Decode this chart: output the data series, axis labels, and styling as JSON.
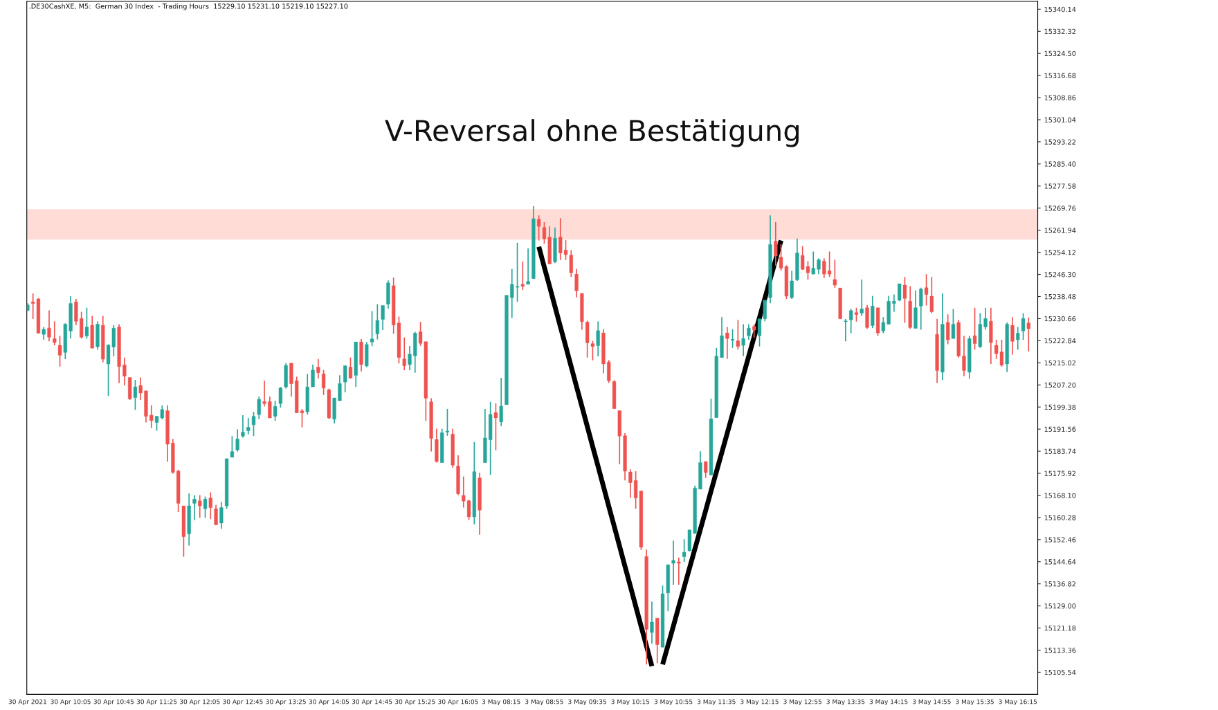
{
  "chart_data": {
    "type": "candlestick",
    "title": "V-Reversal ohne Bestätigung",
    "subtitle": ".DE30CashXE, M5:  German 30 Index  - Trading Hours  15229.10 15231.10 15219.10 15227.10",
    "categories": [
      "30 Apr 2021",
      null,
      null,
      null,
      null,
      null,
      null,
      null,
      "30 Apr 10:05",
      null,
      null,
      null,
      null,
      null,
      null,
      null,
      "30 Apr 10:45",
      null,
      null,
      null,
      null,
      null,
      null,
      null,
      "30 Apr 11:25",
      null,
      null,
      null,
      null,
      null,
      null,
      null,
      "30 Apr 12:05",
      null,
      null,
      null,
      null,
      null,
      null,
      null,
      "30 Apr 12:45",
      null,
      null,
      null,
      null,
      null,
      null,
      null,
      "30 Apr 13:25",
      null,
      null,
      null,
      null,
      null,
      null,
      null,
      "30 Apr 14:05",
      null,
      null,
      null,
      null,
      null,
      null,
      null,
      "30 Apr 14:45",
      null,
      null,
      null,
      null,
      null,
      null,
      null,
      "30 Apr 15:25",
      null,
      null,
      null,
      null,
      null,
      null,
      null,
      "30 Apr 16:05",
      null,
      null,
      null,
      null,
      null,
      null,
      null,
      "3 May 08:15",
      null,
      null,
      null,
      null,
      null,
      null,
      null,
      "3 May 08:55",
      null,
      null,
      null,
      null,
      null,
      null,
      null,
      "3 May 09:35",
      null,
      null,
      null,
      null,
      null,
      null,
      null,
      "3 May 10:15",
      null,
      null,
      null,
      null,
      null,
      null,
      null,
      "3 May 10:55",
      null,
      null,
      null,
      null,
      null,
      null,
      null,
      "3 May 11:35",
      null,
      null,
      null,
      null,
      null,
      null,
      null,
      "3 May 12:15",
      null,
      null,
      null,
      null,
      null,
      null,
      null,
      "3 May 12:55",
      null,
      null,
      null,
      null,
      null,
      null,
      null,
      "3 May 13:35",
      null,
      null,
      null,
      null,
      null,
      null,
      null,
      "3 May 14:15",
      null,
      null,
      null,
      null,
      null,
      null,
      null,
      "3 May 14:55",
      null,
      null,
      null,
      null,
      null,
      null,
      null,
      "3 May 15:35",
      null,
      null,
      null,
      null,
      null,
      null,
      null,
      "3 May 16:15",
      null,
      null
    ],
    "ohlc": [
      [
        15233.6,
        15236.1,
        15233.3,
        15235.5
      ],
      [
        15236.6,
        15239.6,
        15230.5,
        15236.0
      ],
      [
        15237.6,
        15237.9,
        15225.4,
        15225.5
      ],
      [
        15225.1,
        15227.7,
        15223.2,
        15226.9
      ],
      [
        15227.3,
        15233.6,
        15222.6,
        15224.1
      ],
      [
        15223.6,
        15229.7,
        15221.2,
        15222.2
      ],
      [
        15221.2,
        15224.6,
        15213.7,
        15217.7
      ],
      [
        15218.7,
        15229.0,
        15216.3,
        15228.7
      ],
      [
        15226.3,
        15238.6,
        15223.6,
        15236.0
      ],
      [
        15236.6,
        15237.6,
        15228.3,
        15229.7
      ],
      [
        15230.7,
        15233.1,
        15223.6,
        15224.1
      ],
      [
        15224.5,
        15234.5,
        15223.6,
        15227.7
      ],
      [
        15228.3,
        15231.6,
        15220.2,
        15220.2
      ],
      [
        15220.7,
        15229.7,
        15219.7,
        15228.7
      ],
      [
        15228.3,
        15231.6,
        15215.2,
        15216.3
      ],
      [
        15214.6,
        15221.6,
        15203.3,
        15221.3
      ],
      [
        15220.6,
        15228.3,
        15217.3,
        15227.3
      ],
      [
        15227.7,
        15228.7,
        15207.9,
        15213.7
      ],
      [
        15214.3,
        15216.9,
        15207.0,
        15210.3
      ],
      [
        15209.8,
        15209.8,
        15201.9,
        15202.3
      ],
      [
        15202.7,
        15209.0,
        15198.4,
        15206.5
      ],
      [
        15207.0,
        15209.8,
        15201.9,
        15204.3
      ],
      [
        15205.1,
        15205.1,
        15193.9,
        15196.1
      ],
      [
        15196.5,
        15200.0,
        15192.0,
        15194.6
      ],
      [
        15193.9,
        15196.1,
        15191.0,
        15196.1
      ],
      [
        15195.5,
        15200.0,
        15195.1,
        15198.5
      ],
      [
        15198.1,
        15200.0,
        15180.1,
        15186.2
      ],
      [
        15186.6,
        15188.1,
        15175.8,
        15176.3
      ],
      [
        15176.7,
        15177.2,
        15162.2,
        15165.3
      ],
      [
        15164.4,
        15164.4,
        15146.4,
        15153.5
      ],
      [
        15154.5,
        15168.8,
        15150.3,
        15164.4
      ],
      [
        15165.3,
        15168.2,
        15159.3,
        15166.8
      ],
      [
        15166.2,
        15168.2,
        15160.2,
        15164.4
      ],
      [
        15163.4,
        15167.7,
        15160.2,
        15166.8
      ],
      [
        15167.2,
        15169.2,
        15159.7,
        15163.8
      ],
      [
        15163.4,
        15164.8,
        15157.7,
        15157.7
      ],
      [
        15158.3,
        15165.8,
        15156.3,
        15163.8
      ],
      [
        15164.4,
        15181.1,
        15163.4,
        15181.1
      ],
      [
        15181.6,
        15189.1,
        15181.6,
        15183.6
      ],
      [
        15184.2,
        15191.5,
        15183.6,
        15188.1
      ],
      [
        15189.1,
        15196.5,
        15188.5,
        15190.5
      ],
      [
        15191.0,
        15195.5,
        15189.7,
        15192.2
      ],
      [
        15193.1,
        15197.7,
        15189.1,
        15196.1
      ],
      [
        15196.7,
        15203.1,
        15195.1,
        15202.1
      ],
      [
        15201.3,
        15208.7,
        15199.6,
        15200.6
      ],
      [
        15201.3,
        15203.1,
        15195.5,
        15195.5
      ],
      [
        15196.1,
        15201.6,
        15194.5,
        15199.6
      ],
      [
        15200.6,
        15206.5,
        15199.2,
        15206.1
      ],
      [
        15206.5,
        15214.9,
        15205.9,
        15214.1
      ],
      [
        15214.9,
        15214.9,
        15203.1,
        15207.6
      ],
      [
        15208.7,
        15210.1,
        15197.3,
        15197.3
      ],
      [
        15198.0,
        15198.7,
        15192.2,
        15197.3
      ],
      [
        15197.7,
        15211.1,
        15196.7,
        15206.5
      ],
      [
        15206.5,
        15214.4,
        15206.5,
        15212.5
      ],
      [
        15213.5,
        15216.4,
        15209.5,
        15211.5
      ],
      [
        15211.1,
        15212.5,
        15203.6,
        15206.1
      ],
      [
        15205.5,
        15205.9,
        15195.1,
        15195.5
      ],
      [
        15195.1,
        15202.6,
        15193.6,
        15202.6
      ],
      [
        15201.6,
        15210.6,
        15201.6,
        15207.7
      ],
      [
        15208.2,
        15214.0,
        15204.6,
        15214.0
      ],
      [
        15213.5,
        15216.9,
        15209.6,
        15209.6
      ],
      [
        15210.6,
        15222.4,
        15206.5,
        15222.4
      ],
      [
        15222.4,
        15223.4,
        15212.0,
        15214.4
      ],
      [
        15213.9,
        15222.4,
        15213.5,
        15221.5
      ],
      [
        15222.4,
        15233.3,
        15220.9,
        15223.5
      ],
      [
        15225.3,
        15235.8,
        15223.3,
        15230.0
      ],
      [
        15230.4,
        15235.3,
        15226.6,
        15235.3
      ],
      [
        15235.8,
        15244.2,
        15234.2,
        15243.3
      ],
      [
        15242.3,
        15245.2,
        15225.3,
        15228.4
      ],
      [
        15229.1,
        15231.4,
        15214.8,
        15216.9
      ],
      [
        15216.4,
        15224.0,
        15212.4,
        15214.0
      ],
      [
        15214.4,
        15221.0,
        15212.4,
        15218.1
      ],
      [
        15217.5,
        15226.0,
        15211.5,
        15225.5
      ],
      [
        15226.0,
        15229.5,
        15221.0,
        15221.9
      ],
      [
        15222.5,
        15222.5,
        15194.5,
        15202.5
      ],
      [
        15201.2,
        15202.5,
        15183.6,
        15188.3
      ],
      [
        15187.9,
        15191.7,
        15179.7,
        15180.1
      ],
      [
        15179.7,
        15191.7,
        15179.7,
        15190.3
      ],
      [
        15190.7,
        15198.7,
        15189.2,
        15190.7
      ],
      [
        15189.8,
        15191.7,
        15177.9,
        15178.8
      ],
      [
        15178.5,
        15182.3,
        15168.2,
        15168.7
      ],
      [
        15168.1,
        15174.8,
        15163.8,
        15166.1
      ],
      [
        15166.2,
        15166.6,
        15159.4,
        15160.5
      ],
      [
        15160.5,
        15187.0,
        15157.9,
        15176.5
      ],
      [
        15174.3,
        15176.1,
        15154.2,
        15162.9
      ],
      [
        15179.7,
        15198.7,
        15179.7,
        15188.4
      ],
      [
        15187.8,
        15201.2,
        15175.4,
        15196.8
      ],
      [
        15197.4,
        15200.7,
        15184.1,
        15195.5
      ],
      [
        15194.1,
        15209.7,
        15192.6,
        15199.7
      ],
      [
        15200.2,
        15238.9,
        15200.2,
        15238.9
      ],
      [
        15238.1,
        15248.2,
        15230.9,
        15242.8
      ],
      [
        15241.9,
        15257.5,
        15236.6,
        15241.9
      ],
      [
        15242.8,
        15250.9,
        15240.8,
        15242.1
      ],
      [
        15242.8,
        15255.5,
        15242.8,
        15243.8
      ],
      [
        15244.8,
        15270.5,
        15244.8,
        15266.0
      ],
      [
        15265.8,
        15267.2,
        15258.3,
        15263.3
      ],
      [
        15262.9,
        15264.8,
        15257.2,
        15258.9
      ],
      [
        15259.5,
        15263.3,
        15250.0,
        15250.0
      ],
      [
        15250.8,
        15262.9,
        15250.3,
        15259.1
      ],
      [
        15259.5,
        15266.2,
        15251.4,
        15253.9
      ],
      [
        15254.9,
        15258.4,
        15251.4,
        15253.3
      ],
      [
        15253.1,
        15254.9,
        15245.4,
        15246.9
      ],
      [
        15246.4,
        15248.2,
        15238.2,
        15240.5
      ],
      [
        15239.6,
        15239.6,
        15226.7,
        15229.6
      ],
      [
        15229.4,
        15229.9,
        15216.9,
        15222.1
      ],
      [
        15221.8,
        15222.8,
        15215.9,
        15220.8
      ],
      [
        15221.1,
        15229.7,
        15217.3,
        15226.4
      ],
      [
        15225.6,
        15227.0,
        15211.3,
        15214.6
      ],
      [
        15215.3,
        15216.0,
        15207.9,
        15208.7
      ],
      [
        15208.4,
        15208.9,
        15198.8,
        15198.8
      ],
      [
        15198.1,
        15198.1,
        15179.2,
        15189.1
      ],
      [
        15189.2,
        15190.1,
        15173.4,
        15176.7
      ],
      [
        15176.4,
        15177.3,
        15167.2,
        15172.6
      ],
      [
        15173.4,
        15176.7,
        15163.4,
        15167.2
      ],
      [
        15169.7,
        15169.7,
        15148.8,
        15149.8
      ],
      [
        15146.5,
        15148.9,
        15108.3,
        15120.7
      ],
      [
        15119.6,
        15130.5,
        15115.7,
        15123.3
      ],
      [
        15124.7,
        15124.7,
        15108.7,
        15115.3
      ],
      [
        15114.4,
        15136.2,
        15114.4,
        15133.3
      ],
      [
        15133.6,
        15143.6,
        15127.1,
        15143.6
      ],
      [
        15144.1,
        15152.1,
        15136.5,
        15145.1
      ],
      [
        15144.6,
        15146.1,
        15136.5,
        15144.1
      ],
      [
        15146.4,
        15152.6,
        15144.6,
        15148.0
      ],
      [
        15148.5,
        15155.9,
        15148.3,
        15155.9
      ],
      [
        15154.6,
        15171.6,
        15154.6,
        15170.7
      ],
      [
        15170.3,
        15183.7,
        15170.3,
        15179.7
      ],
      [
        15180.1,
        15180.1,
        15174.3,
        15176.2
      ],
      [
        15175.3,
        15202.3,
        15175.3,
        15195.2
      ],
      [
        15195.6,
        15220.3,
        15195.6,
        15217.4
      ],
      [
        15216.9,
        15231.2,
        15216.9,
        15224.6
      ],
      [
        15225.6,
        15227.7,
        15216.4,
        15223.6
      ],
      [
        15223.2,
        15226.9,
        15220.3,
        15223.2
      ],
      [
        15222.8,
        15230.2,
        15219.7,
        15220.8
      ],
      [
        15221.2,
        15228.7,
        15217.4,
        15223.6
      ],
      [
        15224.6,
        15228.7,
        15223.2,
        15227.3
      ],
      [
        15227.9,
        15228.7,
        15223.9,
        15226.6
      ],
      [
        15224.6,
        15230.6,
        15220.8,
        15230.6
      ],
      [
        15230.6,
        15237.2,
        15229.7,
        15237.2
      ],
      [
        15238.1,
        15267.2,
        15236.1,
        15256.9
      ],
      [
        15258.1,
        15264.8,
        15249.4,
        15252.8
      ],
      [
        15252.4,
        15257.0,
        15247.6,
        15248.5
      ],
      [
        15249.1,
        15249.5,
        15237.6,
        15238.6
      ],
      [
        15238.1,
        15247.6,
        15237.6,
        15244.0
      ],
      [
        15244.4,
        15259.0,
        15244.0,
        15253.9
      ],
      [
        15253.0,
        15256.3,
        15247.9,
        15248.1
      ],
      [
        15249.1,
        15251.0,
        15244.4,
        15246.9
      ],
      [
        15246.4,
        15254.4,
        15246.4,
        15248.5
      ],
      [
        15248.1,
        15252.0,
        15246.4,
        15251.5
      ],
      [
        15251.0,
        15252.0,
        15245.0,
        15246.4
      ],
      [
        15247.6,
        15254.4,
        15245.4,
        15246.4
      ],
      [
        15244.5,
        15251.5,
        15241.6,
        15242.5
      ],
      [
        15241.5,
        15241.5,
        15230.6,
        15230.6
      ],
      [
        15229.7,
        15230.5,
        15222.6,
        15229.7
      ],
      [
        15230.2,
        15234.1,
        15225.5,
        15233.5
      ],
      [
        15232.8,
        15234.5,
        15229.6,
        15232.1
      ],
      [
        15232.6,
        15244.5,
        15231.6,
        15234.1
      ],
      [
        15234.5,
        15235.5,
        15227.1,
        15227.5
      ],
      [
        15228.2,
        15238.7,
        15227.3,
        15235.1
      ],
      [
        15234.5,
        15234.5,
        15224.6,
        15225.6
      ],
      [
        15226.3,
        15231.2,
        15225.5,
        15229.3
      ],
      [
        15228.7,
        15238.7,
        15228.7,
        15236.8
      ],
      [
        15236.0,
        15239.2,
        15233.1,
        15236.8
      ],
      [
        15237.2,
        15243.0,
        15236.8,
        15243.0
      ],
      [
        15242.5,
        15245.4,
        15229.2,
        15237.8
      ],
      [
        15236.8,
        15242.1,
        15227.1,
        15227.5
      ],
      [
        15227.2,
        15240.6,
        15227.2,
        15234.5
      ],
      [
        15235.1,
        15241.6,
        15226.7,
        15241.1
      ],
      [
        15241.6,
        15246.4,
        15235.3,
        15239.2
      ],
      [
        15238.6,
        15245.4,
        15232.6,
        15233.1
      ],
      [
        15225.1,
        15230.6,
        15207.9,
        15212.3
      ],
      [
        15211.7,
        15239.6,
        15208.9,
        15228.7
      ],
      [
        15229.3,
        15232.2,
        15221.6,
        15223.2
      ],
      [
        15223.6,
        15234.1,
        15223.6,
        15228.7
      ],
      [
        15229.3,
        15230.2,
        15216.9,
        15217.4
      ],
      [
        15217.4,
        15224.6,
        15210.3,
        15212.3
      ],
      [
        15211.7,
        15224.6,
        15209.4,
        15223.6
      ],
      [
        15224.6,
        15234.5,
        15219.7,
        15221.8
      ],
      [
        15220.7,
        15232.6,
        15220.3,
        15228.7
      ],
      [
        15227.7,
        15234.5,
        15226.7,
        15230.7
      ],
      [
        15229.7,
        15234.5,
        15214.6,
        15222.2
      ],
      [
        15221.2,
        15223.2,
        15216.4,
        15218.3
      ],
      [
        15218.9,
        15223.2,
        15213.7,
        15214.2
      ],
      [
        15214.6,
        15229.3,
        15211.7,
        15228.7
      ],
      [
        15228.3,
        15231.2,
        15217.9,
        15222.6
      ],
      [
        15223.2,
        15227.7,
        15219.7,
        15225.5
      ],
      [
        15226.3,
        15232.6,
        15223.2,
        15230.7
      ],
      [
        15229.1,
        15231.1,
        15219.1,
        15227.1
      ]
    ],
    "colors": [
      "#26a69a",
      "#ef5350",
      "#ef5350",
      "#26a69a",
      "#ef5350",
      "#ef5350",
      "#ef5350",
      "#26a69a",
      "#26a69a",
      "#ef5350",
      "#ef5350",
      "#26a69a",
      "#ef5350",
      "#26a69a",
      "#ef5350",
      "#26a69a",
      "#26a69a",
      "#ef5350",
      "#ef5350",
      "#ef5350",
      "#26a69a",
      "#ef5350",
      "#ef5350",
      "#ef5350",
      "#26a69a",
      "#26a69a",
      "#ef5350",
      "#ef5350",
      "#ef5350",
      "#ef5350",
      "#26a69a",
      "#26a69a",
      "#ef5350",
      "#26a69a",
      "#ef5350",
      "#ef5350",
      "#26a69a",
      "#26a69a",
      "#26a69a",
      "#26a69a",
      "#26a69a",
      "#26a69a",
      "#26a69a",
      "#26a69a",
      "#ef5350",
      "#ef5350",
      "#26a69a",
      "#26a69a",
      "#26a69a",
      "#ef5350",
      "#ef5350",
      "#ef5350",
      "#26a69a",
      "#26a69a",
      "#ef5350",
      "#ef5350",
      "#ef5350",
      "#26a69a",
      "#26a69a",
      "#26a69a",
      "#ef5350",
      "#26a69a",
      "#ef5350",
      "#26a69a",
      "#26a69a",
      "#26a69a",
      "#26a69a",
      "#26a69a",
      "#ef5350",
      "#ef5350",
      "#ef5350",
      "#26a69a",
      "#26a69a",
      "#ef5350",
      "#ef5350",
      "#ef5350",
      "#ef5350",
      "#26a69a",
      "#26a69a",
      "#ef5350",
      "#ef5350",
      "#ef5350",
      "#ef5350",
      "#26a69a",
      "#ef5350",
      "#26a69a",
      "#26a69a",
      "#ef5350",
      "#26a69a",
      "#26a69a",
      "#26a69a",
      "#26a69a",
      "#ef5350",
      "#26a69a",
      "#26a69a",
      "#ef5350",
      "#ef5350",
      "#ef5350",
      "#26a69a",
      "#ef5350",
      "#ef5350",
      "#ef5350",
      "#ef5350",
      "#ef5350",
      "#ef5350",
      "#ef5350",
      "#26a69a",
      "#ef5350",
      "#ef5350",
      "#ef5350",
      "#ef5350",
      "#ef5350",
      "#ef5350",
      "#ef5350",
      "#ef5350",
      "#ef5350",
      "#26a69a",
      "#ef5350",
      "#26a69a",
      "#26a69a",
      "#26a69a",
      "#ef5350",
      "#26a69a",
      "#26a69a",
      "#26a69a",
      "#26a69a",
      "#ef5350",
      "#26a69a",
      "#26a69a",
      "#26a69a",
      "#ef5350",
      "#26a69a",
      "#ef5350",
      "#26a69a",
      "#26a69a",
      "#ef5350",
      "#26a69a",
      "#26a69a",
      "#26a69a",
      "#ef5350",
      "#ef5350",
      "#ef5350",
      "#26a69a",
      "#26a69a",
      "#ef5350",
      "#ef5350",
      "#26a69a",
      "#26a69a",
      "#ef5350",
      "#ef5350",
      "#ef5350",
      "#ef5350",
      "#26a69a",
      "#26a69a",
      "#ef5350",
      "#26a69a",
      "#ef5350",
      "#26a69a",
      "#ef5350",
      "#26a69a",
      "#26a69a",
      "#26a69a",
      "#26a69a",
      "#ef5350",
      "#ef5350",
      "#26a69a",
      "#26a69a",
      "#ef5350",
      "#ef5350",
      "#ef5350",
      "#26a69a",
      "#ef5350",
      "#26a69a",
      "#ef5350",
      "#ef5350",
      "#26a69a",
      "#ef5350",
      "#26a69a",
      "#26a69a",
      "#ef5350",
      "#ef5350",
      "#ef5350",
      "#26a69a",
      "#ef5350",
      "#26a69a",
      "#26a69a",
      "#ef5350"
    ],
    "series": [
      {
        "type": "line",
        "color": "#000000",
        "values": [
          null,
          null,
          null,
          null,
          null,
          null,
          null,
          null,
          null,
          null,
          null,
          null,
          null,
          null,
          null,
          null,
          null,
          null,
          null,
          null,
          null,
          null,
          null,
          null,
          null,
          null,
          null,
          null,
          null,
          null,
          null,
          null,
          null,
          null,
          null,
          null,
          null,
          null,
          null,
          null,
          null,
          null,
          null,
          null,
          null,
          null,
          null,
          null,
          null,
          null,
          null,
          null,
          null,
          null,
          null,
          null,
          null,
          null,
          null,
          null,
          null,
          null,
          null,
          null,
          null,
          null,
          null,
          null,
          null,
          null,
          null,
          null,
          null,
          null,
          null,
          null,
          null,
          null,
          null,
          null,
          null,
          null,
          null,
          null,
          null,
          null,
          null,
          null,
          null,
          null,
          null,
          null,
          null,
          null,
          null,
          15256.1,
          15249.0,
          15242.0,
          15234.9,
          15227.8,
          15220.8,
          15213.7,
          15206.6,
          15199.6,
          15192.5,
          15185.4,
          15178.4,
          15171.3,
          15164.2,
          15157.2,
          15150.1,
          15143.0,
          15136.0,
          15128.9,
          15121.8,
          15114.8,
          15107.7,
          null,
          null,
          null,
          null,
          null,
          null,
          null,
          null,
          null,
          null,
          null,
          null,
          null,
          null,
          null,
          null,
          null,
          null,
          null,
          null,
          null,
          null,
          null,
          null,
          null,
          null,
          null,
          null,
          null,
          null,
          null,
          null,
          null,
          null,
          null,
          null,
          null,
          null,
          null,
          null,
          null,
          null,
          null,
          null,
          null,
          null,
          null,
          null,
          null,
          null,
          null,
          null,
          null,
          null,
          null,
          null,
          null,
          null,
          null,
          null,
          null,
          null,
          null,
          null,
          null,
          null,
          null,
          null,
          null,
          null
        ]
      },
      {
        "type": "line",
        "color": "#000000",
        "values": [
          null,
          null,
          null,
          null,
          null,
          null,
          null,
          null,
          null,
          null,
          null,
          null,
          null,
          null,
          null,
          null,
          null,
          null,
          null,
          null,
          null,
          null,
          null,
          null,
          null,
          null,
          null,
          null,
          null,
          null,
          null,
          null,
          null,
          null,
          null,
          null,
          null,
          null,
          null,
          null,
          null,
          null,
          null,
          null,
          null,
          null,
          null,
          null,
          null,
          null,
          null,
          null,
          null,
          null,
          null,
          null,
          null,
          null,
          null,
          null,
          null,
          null,
          null,
          null,
          null,
          null,
          null,
          null,
          null,
          null,
          null,
          null,
          null,
          null,
          null,
          null,
          null,
          null,
          null,
          null,
          null,
          null,
          null,
          null,
          null,
          null,
          null,
          null,
          null,
          null,
          null,
          null,
          null,
          null,
          null,
          null,
          null,
          null,
          null,
          null,
          null,
          null,
          null,
          null,
          null,
          null,
          null,
          null,
          null,
          null,
          null,
          null,
          null,
          null,
          null,
          null,
          null,
          null,
          15108.3,
          15115.1,
          15121.9,
          15128.8,
          15135.6,
          15142.4,
          15149.2,
          15156.0,
          15162.8,
          15169.7,
          15176.5,
          15183.3,
          15190.1,
          15196.9,
          15203.8,
          15210.6,
          15217.4,
          15224.2,
          15231.0,
          15237.8,
          15244.7,
          15251.5,
          15258.3,
          null,
          null,
          null,
          null,
          null,
          null,
          null,
          null,
          null,
          null,
          null,
          null,
          null,
          null,
          null,
          null,
          null,
          null,
          null,
          null,
          null,
          null,
          null,
          null,
          null,
          null,
          null,
          null,
          null,
          null,
          null,
          null,
          null,
          null,
          null,
          null,
          null,
          null,
          null,
          null,
          null,
          null,
          null,
          null,
          null,
          null
        ]
      }
    ],
    "bands": [
      {
        "axis": "y",
        "from": 15258.6,
        "to": 15269.4,
        "color": "#ffdcd6"
      }
    ],
    "ylim": [
      15097.7,
      15342.9
    ],
    "yticks": [
      15105.54,
      15113.36,
      15121.18,
      {
        "value": 15129.0,
        "label": "15129.00"
      },
      15136.82,
      15144.64,
      15152.46,
      15160.28,
      {
        "value": 15168.1,
        "label": "15168.10"
      },
      15175.92,
      15183.74,
      15191.56,
      15199.38,
      {
        "value": 15207.2,
        "label": "15207.20"
      },
      15215.02,
      15222.84,
      15230.66,
      15238.48,
      {
        "value": 15246.3,
        "label": "15246.30"
      },
      15254.12,
      15261.94,
      15269.76,
      15277.58,
      {
        "value": 15285.4,
        "label": "15285.40"
      },
      15293.22,
      15301.04,
      15308.86,
      15316.68,
      {
        "value": 15324.5,
        "label": "15324.50"
      },
      15332.32,
      15340.14
    ]
  }
}
